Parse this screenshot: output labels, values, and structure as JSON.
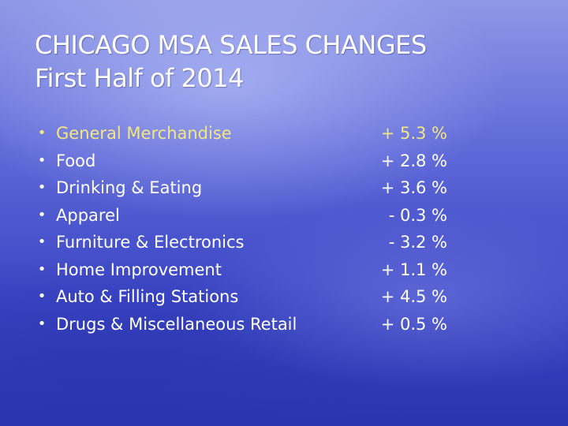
{
  "slide": {
    "title_line1": "CHICAGO MSA SALES CHANGES",
    "title_line2": "First Half of 2014",
    "highlight_color": "#f4e680",
    "text_color": "#ffffff",
    "items": [
      {
        "label": "General Merchandise",
        "value": "+ 5.3 %"
      },
      {
        "label": "Food",
        "value": "+ 2.8 %"
      },
      {
        "label": "Drinking & Eating",
        "value": "+ 3.6 %"
      },
      {
        "label": "Apparel",
        "value": "- 0.3 %"
      },
      {
        "label": "Furniture & Electronics",
        "value": "- 3.2 %"
      },
      {
        "label": "Home Improvement",
        "value": "+ 1.1 %"
      },
      {
        "label": "Auto & Filling Stations",
        "value": "+ 4.5 %"
      },
      {
        "label": "Drugs & Miscellaneous Retail",
        "value": "+ 0.5 %"
      }
    ]
  }
}
